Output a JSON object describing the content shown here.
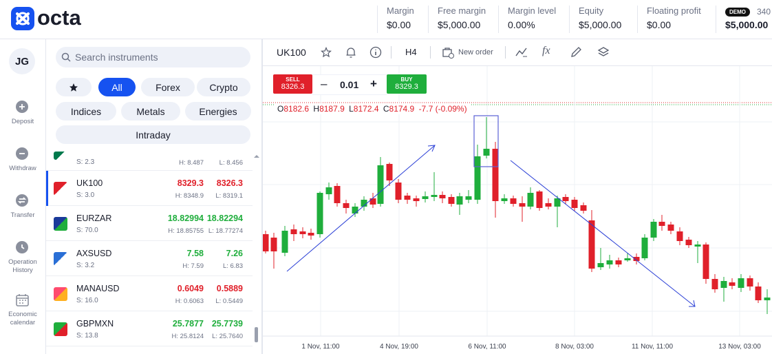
{
  "header": {
    "logo": "octa",
    "stats": [
      {
        "label": "Margin",
        "value": "$0.00"
      },
      {
        "label": "Free margin",
        "value": "$5,000.00"
      },
      {
        "label": "Margin level",
        "value": "0.00%"
      },
      {
        "label": "Equity",
        "value": "$5,000.00"
      },
      {
        "label": "Floating profit",
        "value": "$0.00"
      }
    ],
    "account": {
      "badge": "DEMO",
      "id": "340",
      "balance": "$5,000.00"
    }
  },
  "nav": {
    "avatar": "JG",
    "items": [
      "Deposit",
      "Withdraw",
      "Transfer",
      "Operation History",
      "Economic calendar"
    ]
  },
  "instruments": {
    "search_placeholder": "Search instruments",
    "filters": [
      "All",
      "Forex",
      "Crypto",
      "Indices",
      "Metals",
      "Energies",
      "Intraday"
    ],
    "list": [
      {
        "spread": "S: 2.3",
        "high": "H: 8.487",
        "low": "L: 8.456"
      },
      {
        "symbol": "UK100",
        "spread": "S: 3.0",
        "bid": "8329.3",
        "ask": "8326.3",
        "high": "H: 8348.9",
        "low": "L: 8319.1",
        "color": "#e0202a"
      },
      {
        "symbol": "EURZAR",
        "spread": "S: 70.0",
        "bid": "18.82994",
        "ask": "18.82294",
        "high": "H: 18.85755",
        "low": "L: 18.77274",
        "color": "#1fae3c"
      },
      {
        "symbol": "AXSUSD",
        "spread": "S: 3.2",
        "bid": "7.58",
        "ask": "7.26",
        "high": "H: 7.59",
        "low": "L: 6.83",
        "color": "#1fae3c"
      },
      {
        "symbol": "MANAUSD",
        "spread": "S: 16.0",
        "bid": "0.6049",
        "ask": "0.5889",
        "high": "H: 0.6063",
        "low": "L: 0.5449",
        "color": "#e0202a"
      },
      {
        "symbol": "GBPMXN",
        "spread": "S: 13.8",
        "bid": "25.7877",
        "ask": "25.7739",
        "high": "H: 25.8124",
        "low": "L: 25.7640",
        "color": "#1fae3c"
      }
    ]
  },
  "chart": {
    "symbol": "UK100",
    "timeframe": "H4",
    "new_order": "New order",
    "sell": {
      "label": "SELL",
      "price": "8326.3"
    },
    "lot": "0.01",
    "buy": {
      "label": "BUY",
      "price": "8329.3"
    },
    "ohlc": {
      "o_label": "O",
      "open": "8182.6",
      "h_label": "H",
      "high": "8187.9",
      "l_label": "L",
      "low": "8172.4",
      "c_label": "C",
      "close": "8174.9",
      "change": "-7.7 (-0.09%)"
    },
    "x_labels": [
      "1 Nov, 11:00",
      "4 Nov, 19:00",
      "6 Nov, 11:00",
      "8 Nov, 03:00",
      "11 Nov, 11:00",
      "13 Nov, 03:00"
    ]
  }
}
